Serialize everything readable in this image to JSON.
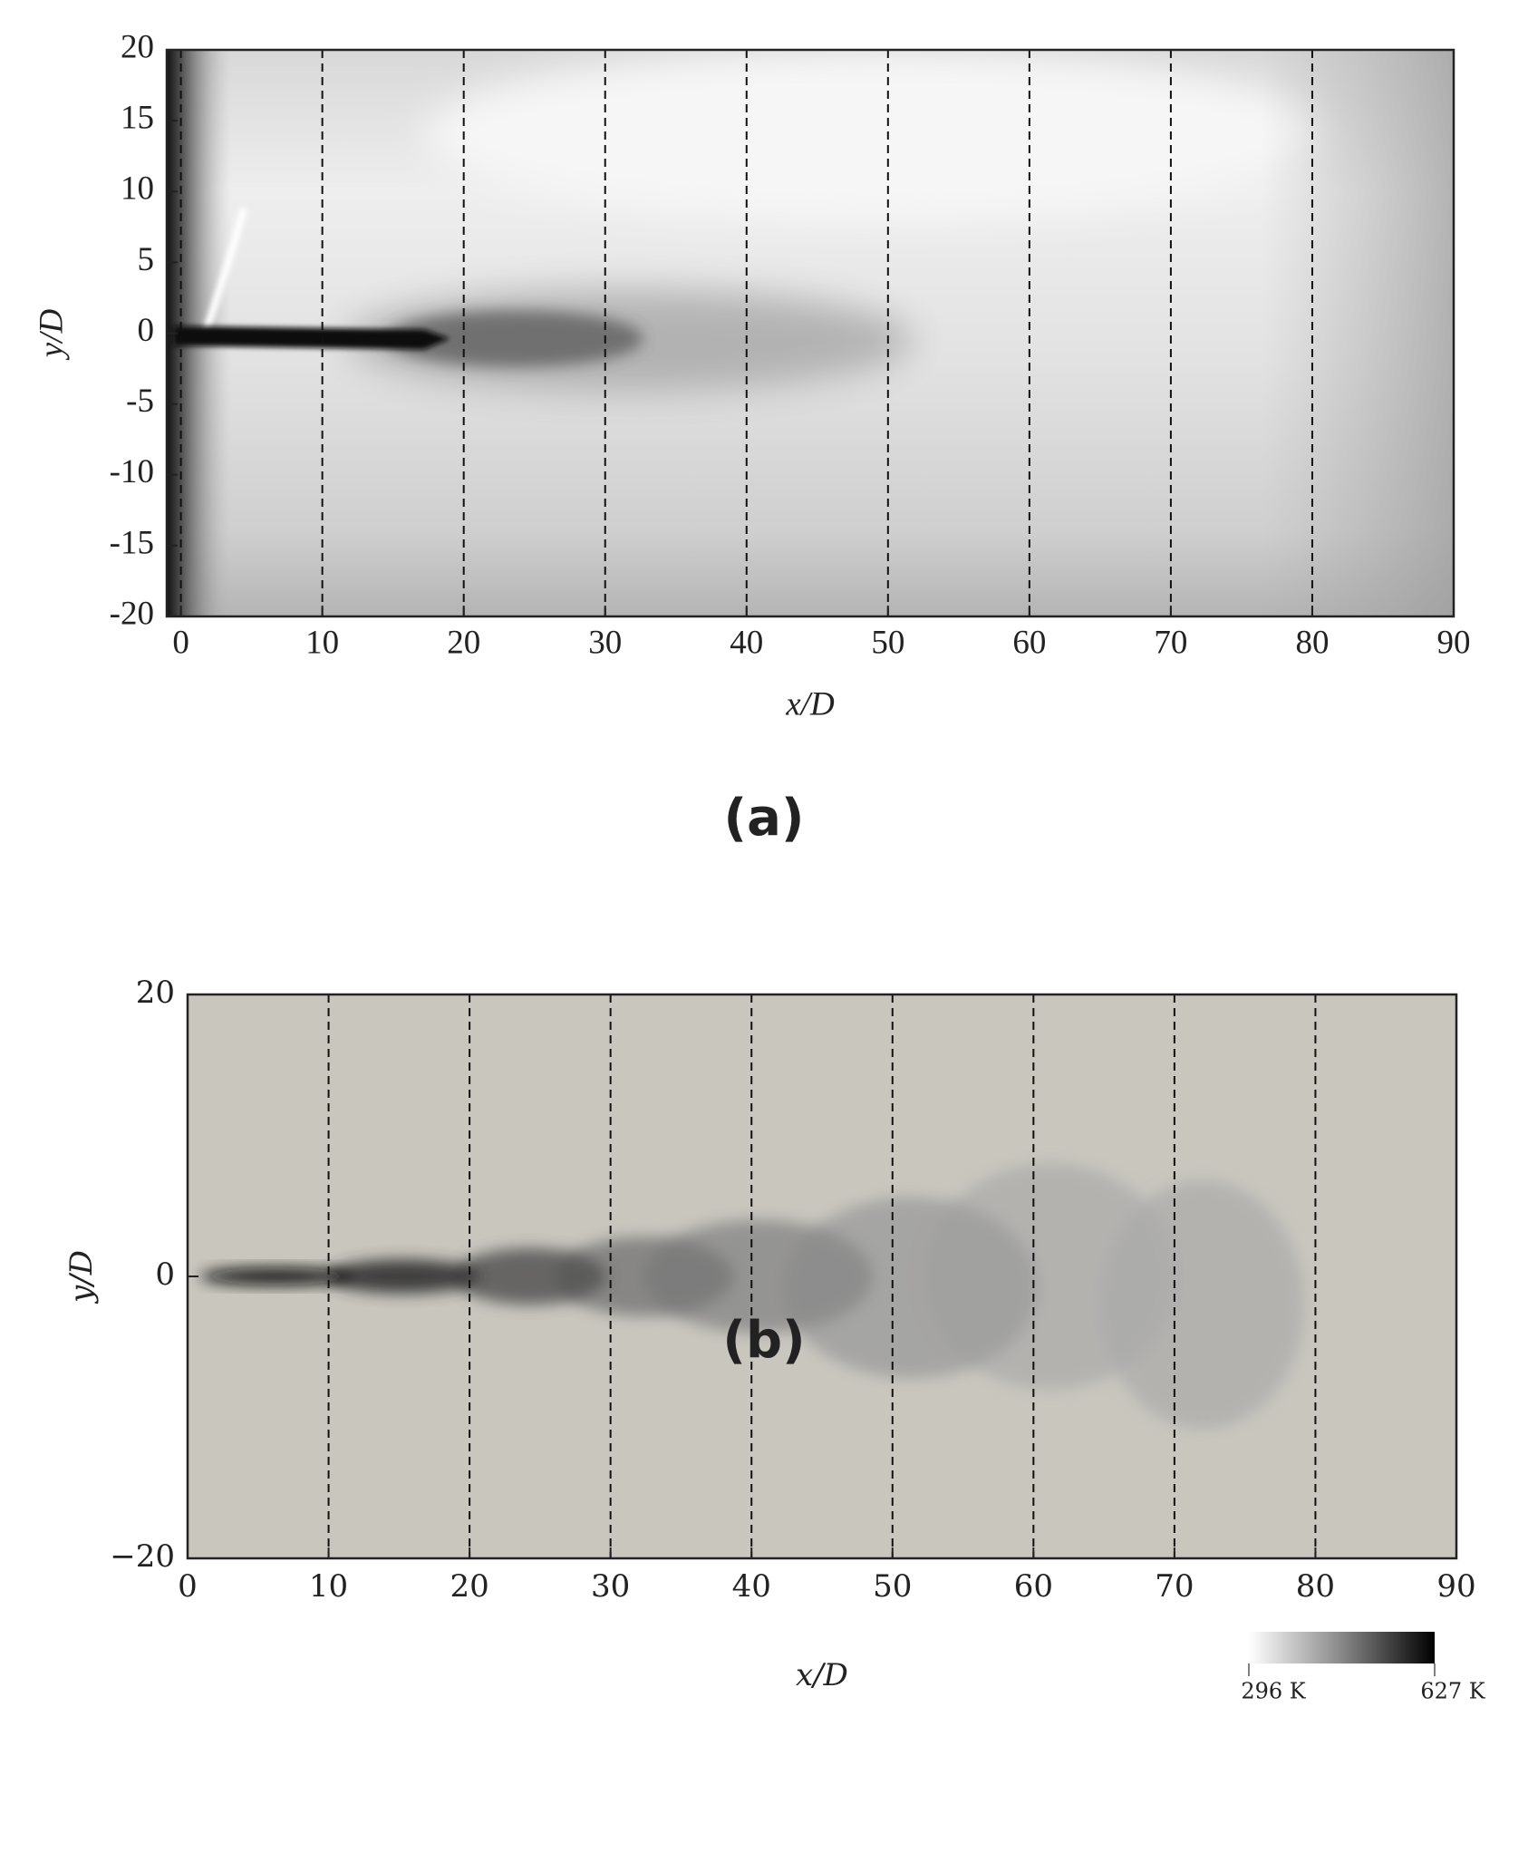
{
  "chart_data": [
    {
      "type": "image",
      "label": "(a)",
      "xlabel": "x/D",
      "ylabel": "y/D",
      "xlim": [
        -1,
        90
      ],
      "ylim": [
        -20,
        20
      ],
      "xticks": [
        0,
        10,
        20,
        30,
        40,
        50,
        60,
        70,
        80,
        90
      ],
      "yticks": [
        20,
        15,
        10,
        5,
        0,
        -5,
        -10,
        -15,
        -20
      ],
      "vlines": [
        0,
        10,
        20,
        30,
        40,
        50,
        60,
        70,
        80
      ]
    },
    {
      "type": "image",
      "label": "(b)",
      "xlabel": "x/D",
      "ylabel": "y/D",
      "xlim": [
        0,
        90
      ],
      "ylim": [
        -20,
        20
      ],
      "xticks": [
        0,
        10,
        20,
        30,
        40,
        50,
        60,
        70,
        80,
        90
      ],
      "yticks": [
        20,
        0,
        {
          "value": -20,
          "label": "−20"
        }
      ],
      "vlines": [
        10,
        20,
        30,
        40,
        50,
        60,
        70,
        80
      ],
      "colorbar": {
        "clim": [
          296,
          627
        ],
        "ticks": [
          {
            "value": 296,
            "label": "296 K"
          },
          {
            "value": 627,
            "label": "627 K"
          }
        ]
      }
    }
  ]
}
